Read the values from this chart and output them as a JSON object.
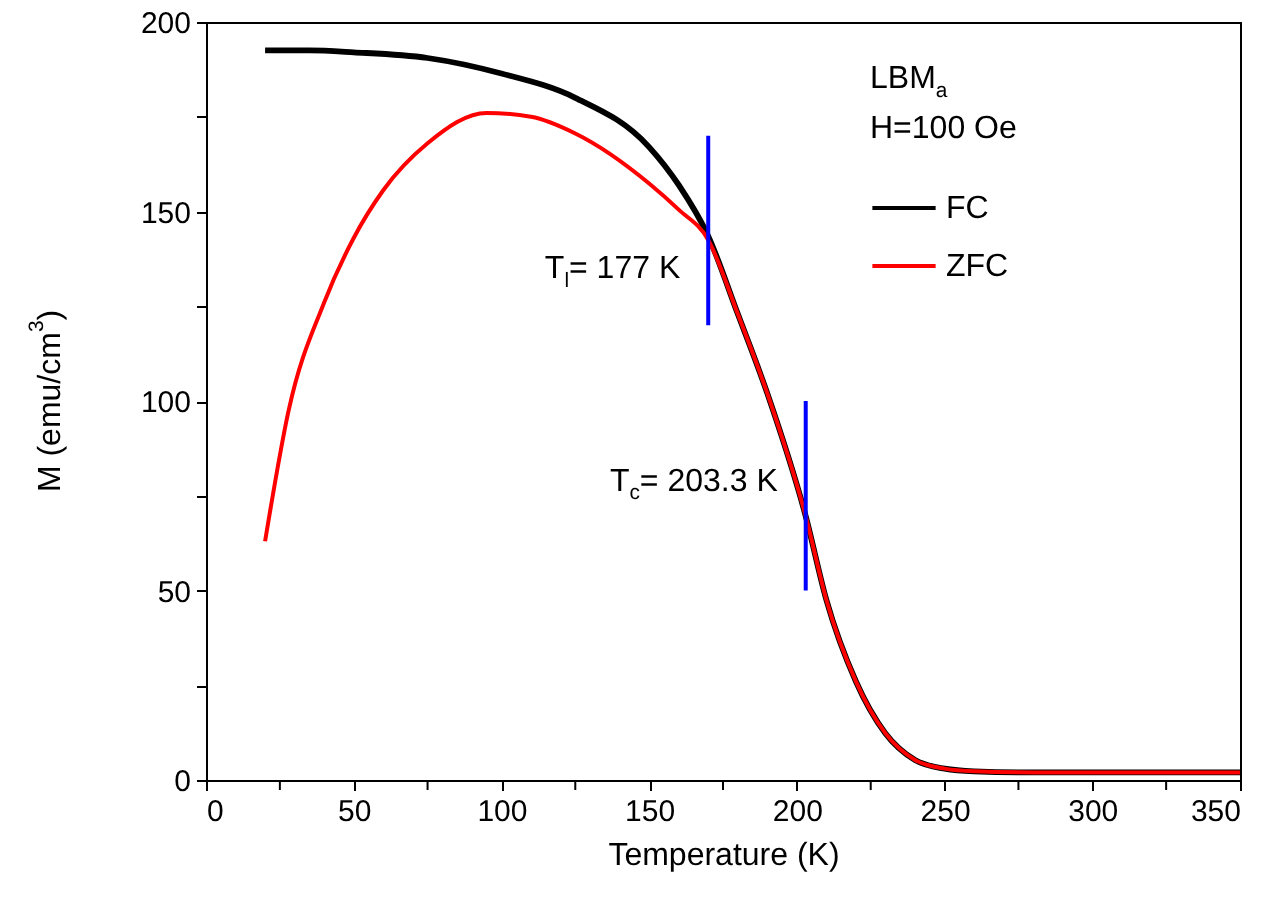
{
  "chart_data": {
    "type": "line",
    "xlabel": "Temperature (K)",
    "ylabel": "M (emu/cm$^{3}$)",
    "legend_title": "LBM$_{a}$\nH=100 Oe",
    "legend": "top right",
    "grid": false,
    "marker": "none",
    "line_style": "solid",
    "xlim": [
      0,
      350
    ],
    "xticks": [
      0,
      {
        "value": 25,
        "label": null
      },
      50,
      {
        "value": 75,
        "label": null
      },
      100,
      {
        "value": 125,
        "label": null
      },
      150,
      {
        "value": 175,
        "label": null
      },
      200,
      {
        "value": 225,
        "label": null
      },
      250,
      {
        "value": 275,
        "label": null
      },
      300,
      {
        "value": 325,
        "label": null
      },
      350
    ],
    "ylim": [
      0,
      200
    ],
    "yticks": [
      0,
      {
        "value": 25,
        "label": null
      },
      50,
      {
        "value": 75,
        "label": null
      },
      100,
      {
        "value": 125,
        "label": null
      },
      150,
      {
        "value": 175,
        "label": null
      },
      200
    ],
    "series": [
      {
        "name": "FC",
        "color": "#000000",
        "x": [
          20,
          35,
          50,
          75,
          100,
          125,
          150,
          160,
          170,
          180,
          190,
          203,
          210,
          220,
          230,
          240,
          250,
          260,
          280,
          300,
          350
        ],
        "values": [
          192.5,
          192.5,
          192,
          190.5,
          186.4,
          180,
          167,
          157,
          143.5,
          123,
          102,
          69.6,
          47.5,
          26,
          12.3,
          5.3,
          3,
          2.3,
          2,
          2,
          2
        ]
      },
      {
        "name": "ZFC",
        "color": "#ff0000",
        "x": [
          20,
          28,
          40,
          50,
          60,
          75,
          95,
          110,
          125,
          150,
          160,
          170,
          180,
          190,
          203,
          210,
          220,
          230,
          240,
          250,
          260,
          280,
          300,
          350
        ],
        "values": [
          63,
          97.6,
          126,
          143,
          155.6,
          168,
          176,
          175,
          170.6,
          157.4,
          150.5,
          142.5,
          123,
          102,
          69.6,
          47.5,
          26,
          12.3,
          5.3,
          3,
          2.3,
          2,
          2,
          2
        ]
      },
      {
        "type": "line",
        "color": "#0000ff",
        "x": [
          170,
          170
        ],
        "values": [
          120,
          170
        ]
      },
      {
        "type": "line",
        "color": "#0000ff",
        "x": [
          203,
          203
        ],
        "values": [
          50,
          100
        ]
      }
    ],
    "annotations": [
      {
        "text": "T$_{l}$= 177 K",
        "x": 170,
        "y": 135
      },
      {
        "text": "T$_{c}$= 203.3 K",
        "x": 203,
        "y": 79
      }
    ]
  }
}
